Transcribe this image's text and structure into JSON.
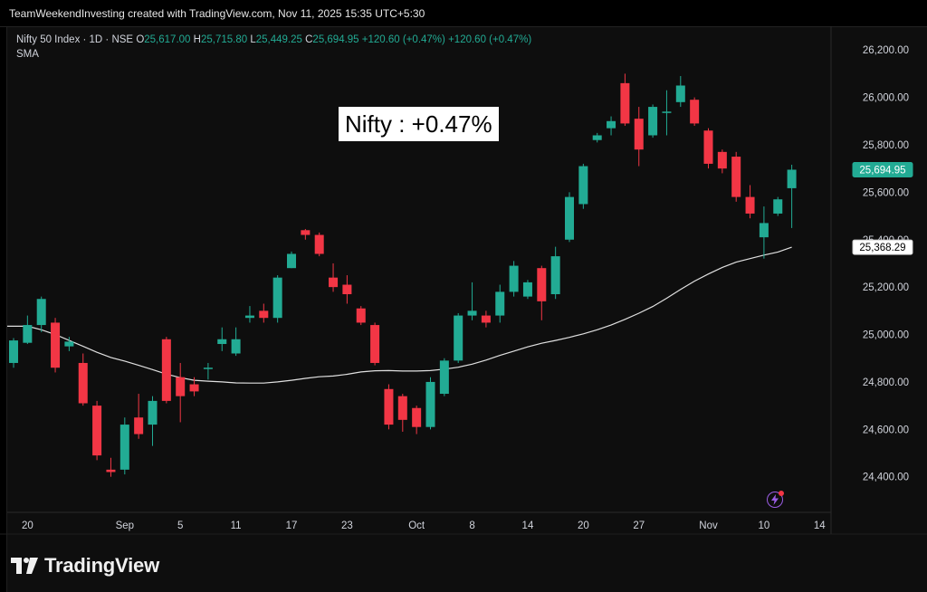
{
  "header": {
    "attribution": "TeamWeekendInvesting created with TradingView.com, Nov 11, 2025 15:35 UTC+5:30"
  },
  "legend": {
    "symbol": "Nifty 50 Index · 1D · NSE",
    "o_label": "O",
    "o_value": "25,617.00",
    "h_label": "H",
    "h_value": "25,715.80",
    "l_label": "L",
    "l_value": "25,449.25",
    "c_label": "C",
    "c_value": "25,694.95",
    "change": "+120.60 (+0.47%)",
    "change2": "+120.60 (+0.47%)",
    "indicator": "SMA"
  },
  "annotation": "Nifty : +0.47%",
  "footer": {
    "wordmark": "TradingView"
  },
  "colors": {
    "up": "#22ab94",
    "down": "#f23645",
    "sma": "#e0e0e0",
    "background": "#0e0e0e",
    "axis_text": "#d1d4dc"
  },
  "chart_data": {
    "type": "candlestick",
    "ylim": [
      24250,
      26300
    ],
    "y_ticks": [
      {
        "value": 24400,
        "label": "24,400.00"
      },
      {
        "value": 24600,
        "label": "24,600.00"
      },
      {
        "value": 24800,
        "label": "24,800.00"
      },
      {
        "value": 25000,
        "label": "25,000.00"
      },
      {
        "value": 25200,
        "label": "25,200.00"
      },
      {
        "value": 25400,
        "label": "25,400.00"
      },
      {
        "value": 25600,
        "label": "25,600.00"
      },
      {
        "value": 25800,
        "label": "25,800.00"
      },
      {
        "value": 26000,
        "label": "26,000.00"
      },
      {
        "value": 26200,
        "label": "26,200.00"
      }
    ],
    "x_ticks": [
      {
        "index": 1,
        "label": "20"
      },
      {
        "index": 8,
        "label": "Sep"
      },
      {
        "index": 12,
        "label": "5"
      },
      {
        "index": 16,
        "label": "11"
      },
      {
        "index": 20,
        "label": "17"
      },
      {
        "index": 24,
        "label": "23"
      },
      {
        "index": 29,
        "label": "Oct"
      },
      {
        "index": 33,
        "label": "8"
      },
      {
        "index": 37,
        "label": "14"
      },
      {
        "index": 41,
        "label": "20"
      },
      {
        "index": 45,
        "label": "27"
      },
      {
        "index": 50,
        "label": "Nov"
      },
      {
        "index": 54,
        "label": "10"
      },
      {
        "index": 58,
        "label": "14"
      }
    ],
    "candles": [
      {
        "o": 24880,
        "h": 24985,
        "l": 24860,
        "c": 24975
      },
      {
        "o": 24965,
        "h": 25080,
        "l": 24960,
        "c": 25040
      },
      {
        "o": 25040,
        "h": 25160,
        "l": 25010,
        "c": 25150
      },
      {
        "o": 25050,
        "h": 25070,
        "l": 24840,
        "c": 24860
      },
      {
        "o": 24950,
        "h": 24990,
        "l": 24930,
        "c": 24970
      },
      {
        "o": 24880,
        "h": 24920,
        "l": 24700,
        "c": 24710
      },
      {
        "o": 24700,
        "h": 24720,
        "l": 24470,
        "c": 24490
      },
      {
        "o": 24430,
        "h": 24480,
        "l": 24400,
        "c": 24420
      },
      {
        "o": 24430,
        "h": 24650,
        "l": 24410,
        "c": 24620
      },
      {
        "o": 24650,
        "h": 24750,
        "l": 24560,
        "c": 24580
      },
      {
        "o": 24620,
        "h": 24740,
        "l": 24530,
        "c": 24720
      },
      {
        "o": 24980,
        "h": 24990,
        "l": 24710,
        "c": 24720
      },
      {
        "o": 24820,
        "h": 24880,
        "l": 24630,
        "c": 24740
      },
      {
        "o": 24790,
        "h": 24820,
        "l": 24740,
        "c": 24760
      },
      {
        "o": 24860,
        "h": 24880,
        "l": 24810,
        "c": 24860
      },
      {
        "o": 24960,
        "h": 25030,
        "l": 24930,
        "c": 24980
      },
      {
        "o": 24920,
        "h": 25030,
        "l": 24910,
        "c": 24980
      },
      {
        "o": 25070,
        "h": 25120,
        "l": 25050,
        "c": 25080
      },
      {
        "o": 25100,
        "h": 25130,
        "l": 25050,
        "c": 25070
      },
      {
        "o": 25070,
        "h": 25250,
        "l": 25050,
        "c": 25240
      },
      {
        "o": 25280,
        "h": 25350,
        "l": 25280,
        "c": 25340
      },
      {
        "o": 25440,
        "h": 25445,
        "l": 25400,
        "c": 25420
      },
      {
        "o": 25420,
        "h": 25430,
        "l": 25330,
        "c": 25340
      },
      {
        "o": 25240,
        "h": 25300,
        "l": 25180,
        "c": 25200
      },
      {
        "o": 25210,
        "h": 25250,
        "l": 25130,
        "c": 25170
      },
      {
        "o": 25110,
        "h": 25120,
        "l": 25040,
        "c": 25050
      },
      {
        "o": 25040,
        "h": 25050,
        "l": 24870,
        "c": 24880
      },
      {
        "o": 24770,
        "h": 24790,
        "l": 24600,
        "c": 24620
      },
      {
        "o": 24740,
        "h": 24750,
        "l": 24590,
        "c": 24640
      },
      {
        "o": 24690,
        "h": 24700,
        "l": 24580,
        "c": 24610
      },
      {
        "o": 24610,
        "h": 24820,
        "l": 24600,
        "c": 24800
      },
      {
        "o": 24750,
        "h": 24900,
        "l": 24740,
        "c": 24890
      },
      {
        "o": 24890,
        "h": 25090,
        "l": 24880,
        "c": 25080
      },
      {
        "o": 25080,
        "h": 25220,
        "l": 25060,
        "c": 25100
      },
      {
        "o": 25080,
        "h": 25100,
        "l": 25030,
        "c": 25050
      },
      {
        "o": 25080,
        "h": 25210,
        "l": 25050,
        "c": 25180
      },
      {
        "o": 25180,
        "h": 25310,
        "l": 25160,
        "c": 25290
      },
      {
        "o": 25160,
        "h": 25230,
        "l": 25150,
        "c": 25220
      },
      {
        "o": 25280,
        "h": 25290,
        "l": 25060,
        "c": 25140
      },
      {
        "o": 25170,
        "h": 25370,
        "l": 25150,
        "c": 25330
      },
      {
        "o": 25400,
        "h": 25600,
        "l": 25390,
        "c": 25580
      },
      {
        "o": 25550,
        "h": 25720,
        "l": 25530,
        "c": 25710
      },
      {
        "o": 25820,
        "h": 25850,
        "l": 25810,
        "c": 25840
      },
      {
        "o": 25870,
        "h": 25920,
        "l": 25840,
        "c": 25900
      },
      {
        "o": 26060,
        "h": 26100,
        "l": 25880,
        "c": 25890
      },
      {
        "o": 25910,
        "h": 25960,
        "l": 25710,
        "c": 25780
      },
      {
        "o": 25840,
        "h": 25970,
        "l": 25830,
        "c": 25960
      },
      {
        "o": 25940,
        "h": 26030,
        "l": 25840,
        "c": 25940
      },
      {
        "o": 25980,
        "h": 26090,
        "l": 25960,
        "c": 26050
      },
      {
        "o": 25990,
        "h": 26000,
        "l": 25880,
        "c": 25890
      },
      {
        "o": 25860,
        "h": 25870,
        "l": 25700,
        "c": 25720
      },
      {
        "o": 25770,
        "h": 25780,
        "l": 25680,
        "c": 25700
      },
      {
        "o": 25750,
        "h": 25770,
        "l": 25560,
        "c": 25580
      },
      {
        "o": 25580,
        "h": 25630,
        "l": 25490,
        "c": 25510
      },
      {
        "o": 25410,
        "h": 25540,
        "l": 25320,
        "c": 25470
      },
      {
        "o": 25510,
        "h": 25580,
        "l": 25500,
        "c": 25570
      },
      {
        "o": 25617,
        "h": 25716,
        "l": 25449,
        "c": 25695
      }
    ],
    "sma": [
      25035,
      25035,
      25020,
      25000,
      24975,
      24950,
      24925,
      24903,
      24888,
      24870,
      24852,
      24833,
      24818,
      24807,
      24803,
      24800,
      24796,
      24795,
      24795,
      24800,
      24807,
      24815,
      24822,
      24825,
      24832,
      24842,
      24847,
      24848,
      24846,
      24846,
      24848,
      24854,
      24862,
      24875,
      24892,
      24912,
      24930,
      24948,
      24963,
      24975,
      24988,
      25003,
      25020,
      25040,
      25064,
      25090,
      25118,
      25153,
      25190,
      25225,
      25255,
      25283,
      25305,
      25320,
      25335,
      25348,
      25368
    ],
    "last_price": {
      "value": 25694.95,
      "label": "25,694.95"
    },
    "sma_last": {
      "value": 25368.29,
      "label": "25,368.29"
    }
  }
}
